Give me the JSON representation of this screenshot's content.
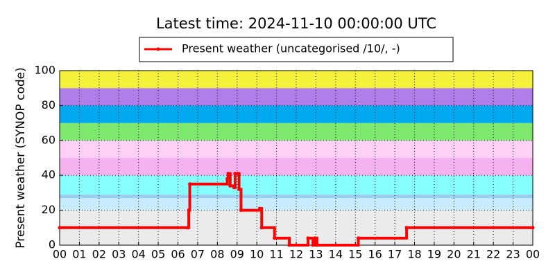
{
  "chart_data": {
    "type": "step-line",
    "title": "Latest time: 2024-11-10 00:00:00 UTC",
    "y_label": "Present weather (SYNOP code)",
    "series": [
      {
        "name": "Present weather (uncategorised /10/, -)",
        "color": "#ff0000",
        "x": [
          0,
          6.5,
          6.55,
          6.6,
          8.5,
          8.55,
          8.65,
          8.85,
          8.9,
          9.05,
          9.1,
          9.2,
          10.15,
          10.25,
          10.9,
          11.65,
          12.6,
          12.85,
          12.95,
          13.05,
          15.15,
          17.6,
          24
        ],
        "values": [
          10,
          10,
          20,
          35,
          38,
          41,
          34,
          33,
          41,
          41,
          32,
          20,
          21,
          10,
          4,
          0,
          4,
          0,
          4,
          0,
          4,
          10,
          10
        ]
      }
    ],
    "bands": [
      {
        "from": 0,
        "to": 20,
        "color": "#ebebeb"
      },
      {
        "from": 20,
        "to": 27,
        "color": "#c8ecff"
      },
      {
        "from": 27,
        "to": 29,
        "color": "#99ccee"
      },
      {
        "from": 29,
        "to": 40,
        "color": "#88ffff"
      },
      {
        "from": 40,
        "to": 50,
        "color": "#f4b3ee"
      },
      {
        "from": 50,
        "to": 60,
        "color": "#ffd0f8"
      },
      {
        "from": 60,
        "to": 70,
        "color": "#7ee86e"
      },
      {
        "from": 70,
        "to": 80,
        "color": "#00a8f0"
      },
      {
        "from": 80,
        "to": 90,
        "color": "#b07ee8"
      },
      {
        "from": 90,
        "to": 100,
        "color": "#f5f03a"
      }
    ],
    "xlim": [
      0,
      24
    ],
    "xticks": [
      {
        "value": 0,
        "label": "00"
      },
      {
        "value": 1,
        "label": "01"
      },
      {
        "value": 2,
        "label": "02"
      },
      {
        "value": 3,
        "label": "03"
      },
      {
        "value": 4,
        "label": "04"
      },
      {
        "value": 5,
        "label": "05"
      },
      {
        "value": 6,
        "label": "06"
      },
      {
        "value": 7,
        "label": "07"
      },
      {
        "value": 8,
        "label": "08"
      },
      {
        "value": 9,
        "label": "09"
      },
      10,
      11,
      12,
      13,
      14,
      15,
      16,
      17,
      18,
      19,
      20,
      21,
      22,
      23,
      {
        "value": 24,
        "label": "00"
      }
    ],
    "ylim": [
      0,
      100
    ],
    "yticks": [
      0,
      20,
      40,
      60,
      80,
      100
    ],
    "grid": true,
    "legend": "top"
  }
}
